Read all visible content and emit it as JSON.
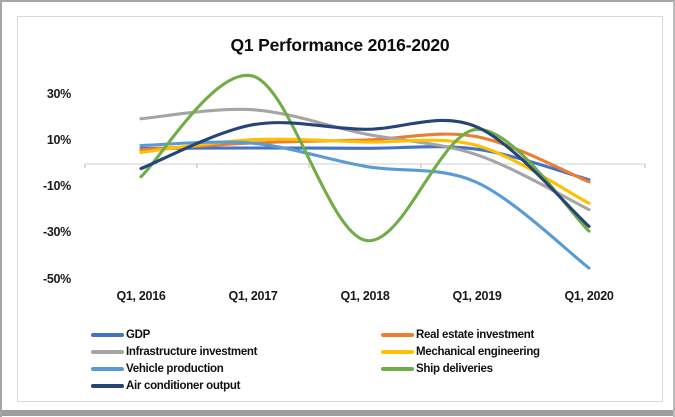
{
  "window": {
    "background": "#ffffff",
    "outer_border": "#a6a6a6",
    "bottom_bar": "#9e9e9e"
  },
  "chart_data": {
    "type": "line",
    "smoothed": true,
    "title": "Q1 Performance 2016-2020",
    "categories": [
      "Q1, 2016",
      "Q1, 2017",
      "Q1, 2018",
      "Q1, 2019",
      "Q1, 2020"
    ],
    "series": [
      {
        "name": "GDP",
        "color": "#4472C4",
        "values": [
          6.7,
          6.9,
          6.8,
          6.4,
          -6.8
        ]
      },
      {
        "name": "Real estate investment",
        "color": "#ED7D31",
        "values": [
          6.2,
          9.1,
          10.4,
          11.8,
          -7.7
        ]
      },
      {
        "name": "Infrastructure investment",
        "color": "#A5A5A5",
        "values": [
          19.6,
          23.5,
          13.0,
          4.0,
          -19.7
        ]
      },
      {
        "name": "Mechanical engineering",
        "color": "#FFC000",
        "values": [
          5.0,
          10.5,
          9.5,
          8.0,
          -17.0
        ]
      },
      {
        "name": "Vehicle production",
        "color": "#5B9BD5",
        "values": [
          8.0,
          9.0,
          -1.0,
          -8.0,
          -45.0
        ]
      },
      {
        "name": "Ship deliveries",
        "color": "#70AD47",
        "values": [
          -5.5,
          38.0,
          -33.0,
          15.0,
          -29.0
        ]
      },
      {
        "name": "Air conditioner output",
        "color": "#264478",
        "values": [
          -2.0,
          17.0,
          15.0,
          16.0,
          -27.0
        ]
      }
    ],
    "ylabel": "",
    "xlabel": "",
    "y_axis": {
      "tick_labels": [
        "30%",
        "10%",
        "-10%",
        "-30%",
        "-50%"
      ],
      "tick_values": [
        30,
        10,
        -10,
        -30,
        -50
      ],
      "min": -50,
      "max": 40,
      "unit": "%"
    },
    "gridlines": "zero-baseline-only",
    "axis_line_color": "#d9d9d9",
    "tick_mark_color": "#c6c6c6",
    "legend_position": "bottom",
    "legend_columns": 2
  },
  "legend": {
    "column_order": [
      [
        "GDP",
        "Infrastructure investment",
        "Vehicle production",
        "Air conditioner output"
      ],
      [
        "Real estate investment",
        "Mechanical engineering",
        "Ship deliveries"
      ]
    ]
  }
}
